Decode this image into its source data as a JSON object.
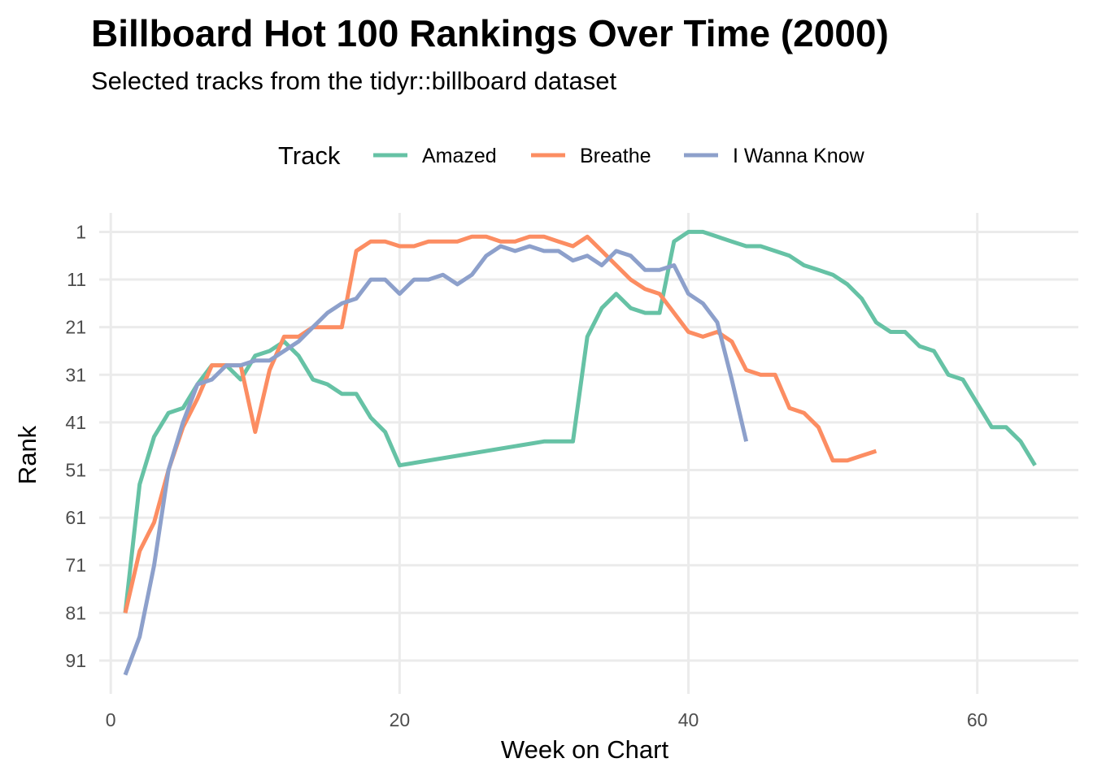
{
  "chart_data": {
    "type": "line",
    "title": "Billboard Hot 100 Rankings Over Time (2000)",
    "subtitle": "Selected tracks from the tidyr::billboard dataset",
    "xlabel": "Week on Chart",
    "ylabel": "Rank",
    "xlim": [
      -0.8,
      67
    ],
    "ylim": [
      98,
      -3
    ],
    "y_reversed": true,
    "x_ticks": [
      0,
      20,
      40,
      60
    ],
    "y_ticks": [
      1,
      11,
      21,
      31,
      41,
      51,
      61,
      71,
      81,
      91
    ],
    "grid": true,
    "legend": {
      "title": "Track",
      "position": "top"
    },
    "series": [
      {
        "name": "Amazed",
        "color": "#66c2a5",
        "points": [
          [
            1,
            81
          ],
          [
            2,
            54
          ],
          [
            3,
            44
          ],
          [
            4,
            39
          ],
          [
            5,
            38
          ],
          [
            6,
            33
          ],
          [
            7,
            29
          ],
          [
            8,
            29
          ],
          [
            9,
            32
          ],
          [
            10,
            27
          ],
          [
            11,
            26
          ],
          [
            12,
            24
          ],
          [
            13,
            27
          ],
          [
            14,
            32
          ],
          [
            15,
            33
          ],
          [
            16,
            35
          ],
          [
            17,
            35
          ],
          [
            18,
            40
          ],
          [
            19,
            43
          ],
          [
            20,
            50
          ],
          [
            30,
            45
          ],
          [
            31,
            45
          ],
          [
            32,
            45
          ],
          [
            33,
            23
          ],
          [
            34,
            17
          ],
          [
            35,
            14
          ],
          [
            36,
            17
          ],
          [
            37,
            18
          ],
          [
            38,
            18
          ],
          [
            39,
            3
          ],
          [
            40,
            1
          ],
          [
            41,
            1
          ],
          [
            42,
            2
          ],
          [
            43,
            3
          ],
          [
            44,
            4
          ],
          [
            45,
            4
          ],
          [
            46,
            5
          ],
          [
            47,
            6
          ],
          [
            48,
            8
          ],
          [
            49,
            9
          ],
          [
            50,
            10
          ],
          [
            51,
            12
          ],
          [
            52,
            15
          ],
          [
            53,
            20
          ],
          [
            54,
            22
          ],
          [
            55,
            22
          ],
          [
            56,
            25
          ],
          [
            57,
            26
          ],
          [
            58,
            31
          ],
          [
            59,
            32
          ],
          [
            60,
            37
          ],
          [
            61,
            42
          ],
          [
            62,
            42
          ],
          [
            63,
            45
          ],
          [
            64,
            50
          ]
        ]
      },
      {
        "name": "Breathe",
        "color": "#fc8d62",
        "points": [
          [
            1,
            81
          ],
          [
            2,
            68
          ],
          [
            3,
            62
          ],
          [
            4,
            51
          ],
          [
            5,
            42
          ],
          [
            6,
            36
          ],
          [
            7,
            29
          ],
          [
            8,
            29
          ],
          [
            9,
            29
          ],
          [
            10,
            43
          ],
          [
            11,
            30
          ],
          [
            12,
            23
          ],
          [
            13,
            23
          ],
          [
            14,
            21
          ],
          [
            15,
            21
          ],
          [
            16,
            21
          ],
          [
            17,
            5
          ],
          [
            18,
            3
          ],
          [
            19,
            3
          ],
          [
            20,
            4
          ],
          [
            21,
            4
          ],
          [
            22,
            3
          ],
          [
            23,
            3
          ],
          [
            24,
            3
          ],
          [
            25,
            2
          ],
          [
            26,
            2
          ],
          [
            27,
            3
          ],
          [
            28,
            3
          ],
          [
            29,
            2
          ],
          [
            30,
            2
          ],
          [
            31,
            3
          ],
          [
            32,
            4
          ],
          [
            33,
            2
          ],
          [
            34,
            5
          ],
          [
            35,
            8
          ],
          [
            36,
            11
          ],
          [
            37,
            13
          ],
          [
            38,
            14
          ],
          [
            39,
            18
          ],
          [
            40,
            22
          ],
          [
            41,
            23
          ],
          [
            42,
            22
          ],
          [
            43,
            24
          ],
          [
            44,
            30
          ],
          [
            45,
            31
          ],
          [
            46,
            31
          ],
          [
            47,
            38
          ],
          [
            48,
            39
          ],
          [
            49,
            42
          ],
          [
            50,
            49
          ],
          [
            51,
            49
          ],
          [
            52,
            48
          ],
          [
            53,
            47
          ]
        ]
      },
      {
        "name": "I Wanna Know",
        "color": "#8da0cb",
        "points": [
          [
            1,
            94
          ],
          [
            2,
            86
          ],
          [
            3,
            71
          ],
          [
            4,
            51
          ],
          [
            5,
            41
          ],
          [
            6,
            33
          ],
          [
            7,
            32
          ],
          [
            8,
            29
          ],
          [
            9,
            29
          ],
          [
            10,
            28
          ],
          [
            11,
            28
          ],
          [
            12,
            26
          ],
          [
            13,
            24
          ],
          [
            14,
            21
          ],
          [
            15,
            18
          ],
          [
            16,
            16
          ],
          [
            17,
            15
          ],
          [
            18,
            11
          ],
          [
            19,
            11
          ],
          [
            20,
            14
          ],
          [
            21,
            11
          ],
          [
            22,
            11
          ],
          [
            23,
            10
          ],
          [
            24,
            12
          ],
          [
            25,
            10
          ],
          [
            26,
            6
          ],
          [
            27,
            4
          ],
          [
            28,
            5
          ],
          [
            29,
            4
          ],
          [
            30,
            5
          ],
          [
            31,
            5
          ],
          [
            32,
            7
          ],
          [
            33,
            6
          ],
          [
            34,
            8
          ],
          [
            35,
            5
          ],
          [
            36,
            6
          ],
          [
            37,
            9
          ],
          [
            38,
            9
          ],
          [
            39,
            8
          ],
          [
            40,
            14
          ],
          [
            41,
            16
          ],
          [
            42,
            20
          ],
          [
            43,
            32
          ],
          [
            44,
            45
          ]
        ]
      }
    ]
  }
}
